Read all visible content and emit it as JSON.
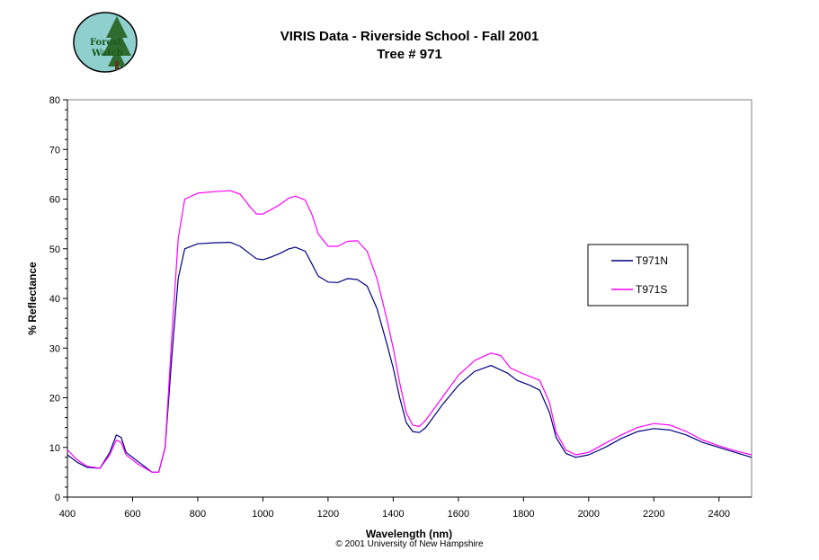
{
  "logo": {
    "line1": "Forest",
    "line2": "Watch"
  },
  "header": {
    "title_line1": "VIRIS Data - Riverside School - Fall 2001",
    "title_line2": "Tree # 971"
  },
  "footer": {
    "copyright": "© 2001 University of New Hampshire"
  },
  "colors": {
    "T971N": "#000080",
    "T971S": "#ff00ff"
  },
  "chart_data": {
    "type": "line",
    "xlabel": "Wavelength (nm)",
    "ylabel": "% Reflectance",
    "xlim": [
      400,
      2500
    ],
    "ylim": [
      0,
      80
    ],
    "xticks": [
      400,
      600,
      800,
      1000,
      1200,
      1400,
      1600,
      1800,
      2000,
      2200,
      2400
    ],
    "yticks": [
      0,
      10,
      20,
      30,
      40,
      50,
      60,
      70,
      80
    ],
    "legend_position": "right",
    "grid": false,
    "series": [
      {
        "name": "T971N",
        "points": [
          [
            400,
            8.5
          ],
          [
            430,
            7
          ],
          [
            460,
            6
          ],
          [
            500,
            5.8
          ],
          [
            530,
            9
          ],
          [
            550,
            12.5
          ],
          [
            565,
            12
          ],
          [
            580,
            9
          ],
          [
            620,
            7
          ],
          [
            660,
            5
          ],
          [
            680,
            5
          ],
          [
            700,
            10
          ],
          [
            720,
            28
          ],
          [
            740,
            44
          ],
          [
            760,
            50
          ],
          [
            800,
            51
          ],
          [
            850,
            51.2
          ],
          [
            900,
            51.3
          ],
          [
            930,
            50.5
          ],
          [
            960,
            49
          ],
          [
            980,
            48
          ],
          [
            1000,
            47.8
          ],
          [
            1020,
            48.2
          ],
          [
            1050,
            49
          ],
          [
            1080,
            50
          ],
          [
            1100,
            50.3
          ],
          [
            1130,
            49.5
          ],
          [
            1150,
            47
          ],
          [
            1170,
            44.5
          ],
          [
            1200,
            43.3
          ],
          [
            1230,
            43.2
          ],
          [
            1260,
            44
          ],
          [
            1290,
            43.8
          ],
          [
            1320,
            42.5
          ],
          [
            1350,
            38
          ],
          [
            1380,
            31
          ],
          [
            1400,
            26
          ],
          [
            1420,
            20
          ],
          [
            1440,
            15
          ],
          [
            1460,
            13.2
          ],
          [
            1480,
            13
          ],
          [
            1500,
            14
          ],
          [
            1550,
            18.5
          ],
          [
            1600,
            22.5
          ],
          [
            1650,
            25.3
          ],
          [
            1700,
            26.5
          ],
          [
            1750,
            25
          ],
          [
            1780,
            23.5
          ],
          [
            1820,
            22.5
          ],
          [
            1850,
            21.5
          ],
          [
            1880,
            17
          ],
          [
            1900,
            12
          ],
          [
            1930,
            8.8
          ],
          [
            1960,
            8
          ],
          [
            2000,
            8.5
          ],
          [
            2050,
            10
          ],
          [
            2100,
            11.8
          ],
          [
            2150,
            13.2
          ],
          [
            2200,
            13.8
          ],
          [
            2250,
            13.5
          ],
          [
            2300,
            12.5
          ],
          [
            2350,
            11
          ],
          [
            2400,
            10
          ],
          [
            2450,
            9
          ],
          [
            2500,
            8
          ]
        ]
      },
      {
        "name": "T971S",
        "points": [
          [
            400,
            9.5
          ],
          [
            430,
            7.5
          ],
          [
            460,
            6.2
          ],
          [
            500,
            5.8
          ],
          [
            530,
            8.5
          ],
          [
            550,
            11.5
          ],
          [
            565,
            11
          ],
          [
            580,
            8.5
          ],
          [
            620,
            6.5
          ],
          [
            660,
            5
          ],
          [
            680,
            5
          ],
          [
            700,
            10
          ],
          [
            720,
            32
          ],
          [
            740,
            52
          ],
          [
            760,
            60
          ],
          [
            800,
            61.2
          ],
          [
            850,
            61.5
          ],
          [
            900,
            61.7
          ],
          [
            930,
            61
          ],
          [
            960,
            58.5
          ],
          [
            980,
            57
          ],
          [
            1000,
            57
          ],
          [
            1020,
            57.7
          ],
          [
            1050,
            58.8
          ],
          [
            1080,
            60.2
          ],
          [
            1100,
            60.6
          ],
          [
            1130,
            59.8
          ],
          [
            1150,
            57
          ],
          [
            1170,
            53
          ],
          [
            1200,
            50.5
          ],
          [
            1230,
            50.5
          ],
          [
            1260,
            51.5
          ],
          [
            1290,
            51.6
          ],
          [
            1320,
            49.5
          ],
          [
            1350,
            44
          ],
          [
            1380,
            36
          ],
          [
            1400,
            30
          ],
          [
            1420,
            23
          ],
          [
            1440,
            17
          ],
          [
            1460,
            14.5
          ],
          [
            1480,
            14.2
          ],
          [
            1500,
            15.5
          ],
          [
            1550,
            20
          ],
          [
            1600,
            24.5
          ],
          [
            1650,
            27.5
          ],
          [
            1700,
            29
          ],
          [
            1730,
            28.5
          ],
          [
            1760,
            26
          ],
          [
            1800,
            24.8
          ],
          [
            1850,
            23.5
          ],
          [
            1880,
            19
          ],
          [
            1900,
            13
          ],
          [
            1930,
            9.5
          ],
          [
            1960,
            8.5
          ],
          [
            2000,
            9
          ],
          [
            2050,
            10.8
          ],
          [
            2100,
            12.5
          ],
          [
            2150,
            14
          ],
          [
            2200,
            14.8
          ],
          [
            2250,
            14.5
          ],
          [
            2300,
            13.2
          ],
          [
            2350,
            11.5
          ],
          [
            2400,
            10.3
          ],
          [
            2450,
            9.3
          ],
          [
            2500,
            8.5
          ]
        ]
      }
    ]
  }
}
